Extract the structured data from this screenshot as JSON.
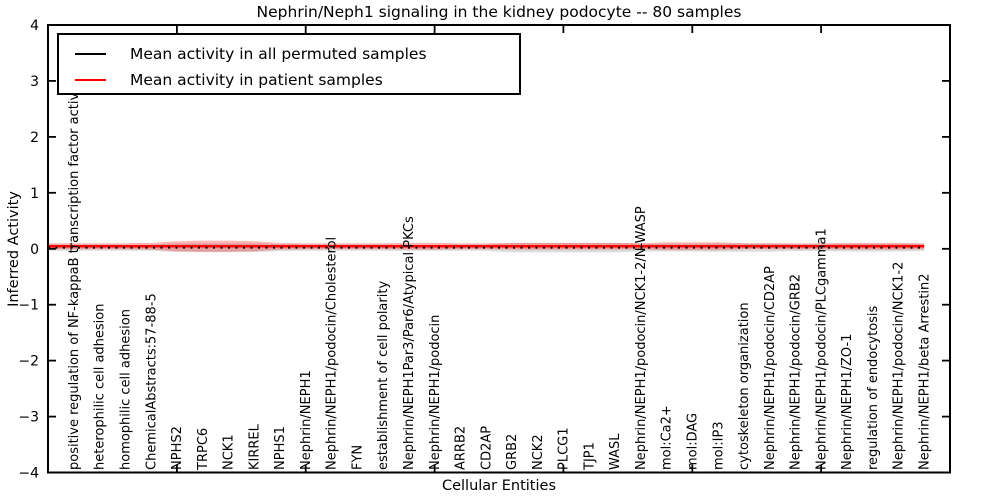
{
  "figure": {
    "title": "Nephrin/Neph1 signaling in the kidney podocyte -- 80 samples",
    "xlabel": "Cellular Entities",
    "ylabel": "Inferred Activity"
  },
  "legend": {
    "items": [
      {
        "label": "Mean activity in all permuted samples",
        "color": "#000000"
      },
      {
        "label": "Mean activity in patient samples",
        "color": "#ff0000"
      }
    ],
    "position": "upper left"
  },
  "chart_data": {
    "type": "line",
    "title": "Nephrin/Neph1 signaling in the kidney podocyte -- 80 samples",
    "xlabel": "Cellular Entities",
    "ylabel": "Inferred Activity",
    "ylim": [
      -4,
      4
    ],
    "xlim": [
      0,
      35
    ],
    "yticks": [
      {
        "v": 4,
        "label": "4"
      },
      {
        "v": 3,
        "label": "3"
      },
      {
        "v": 2,
        "label": "2"
      },
      {
        "v": 1,
        "label": "1"
      },
      {
        "v": 0,
        "label": "0"
      },
      {
        "v": -1,
        "label": "−1"
      },
      {
        "v": -2,
        "label": "−2"
      },
      {
        "v": -3,
        "label": "−3"
      },
      {
        "v": -4,
        "label": "−4"
      }
    ],
    "xticks": [
      5,
      10,
      15,
      20,
      25,
      30
    ],
    "grid": false,
    "legend_position": "upper left",
    "categories": [
      "positive regulation of NF-kappaB transcription factor activity",
      "heterophilic cell adhesion",
      "homophilic cell adhesion",
      "ChemicalAbstracts:57-88-5",
      "NPHS2",
      "TRPC6",
      "NCK1",
      "KIRREL",
      "NPHS1",
      "Nephrin/NEPH1",
      "Nephrin/NEPH1/podocin/Cholesterol",
      "FYN",
      "establishment of cell polarity",
      "Nephrin/NEPH1Par3/Par6/Atypical PKCs",
      "Nephrin/NEPH1/podocin",
      "ARRB2",
      "CD2AP",
      "GRB2",
      "NCK2",
      "PLCG1",
      "TJP1",
      "WASL",
      "Nephrin/NEPH1/podocin/NCK1-2/N-WASP",
      "mol:Ca2+",
      "mol:DAG",
      "mol:IP3",
      "cytoskeleton organization",
      "Nephrin/NEPH1/podocin/CD2AP",
      "Nephrin/NEPH1/podocin/GRB2",
      "Nephrin/NEPH1/podocin/PLCgamma1",
      "Nephrin/NEPH1/ZO-1",
      "regulation of endocytosis",
      "Nephrin/NEPH1/podocin/NCK1-2",
      "Nephrin/NEPH1/beta Arrestin2"
    ],
    "series": [
      {
        "name": "Mean activity in all permuted samples",
        "color": "#000000",
        "style": "dotted",
        "values": [
          0.02,
          0.02,
          0.02,
          0.02,
          0.02,
          0.02,
          0.02,
          0.02,
          0.02,
          0.02,
          0.02,
          0.02,
          0.02,
          0.02,
          0.02,
          0.02,
          0.02,
          0.02,
          0.02,
          0.02,
          0.02,
          0.02,
          0.02,
          0.02,
          0.02,
          0.02,
          0.02,
          0.02,
          0.02,
          0.02,
          0.02,
          0.02,
          0.02,
          0.02
        ],
        "band": [
          0.055,
          0.055,
          0.055,
          0.055,
          0.08,
          0.08,
          0.08,
          0.08,
          0.06,
          0.055,
          0.055,
          0.055,
          0.055,
          0.055,
          0.055,
          0.055,
          0.055,
          0.085,
          0.085,
          0.085,
          0.085,
          0.085,
          0.07,
          0.07,
          0.07,
          0.075,
          0.075,
          0.075,
          0.06,
          0.06,
          0.07,
          0.07,
          0.07,
          0.06
        ],
        "band_color": "rgba(110,110,110,0.25)"
      },
      {
        "name": "Mean activity in patient samples",
        "color": "#ff0000",
        "style": "solid",
        "values": [
          0.045,
          0.045,
          0.045,
          0.045,
          0.045,
          0.045,
          0.045,
          0.045,
          0.045,
          0.045,
          0.045,
          0.045,
          0.045,
          0.045,
          0.045,
          0.045,
          0.045,
          0.045,
          0.045,
          0.045,
          0.045,
          0.045,
          0.045,
          0.045,
          0.045,
          0.045,
          0.045,
          0.045,
          0.045,
          0.045,
          0.045,
          0.045,
          0.045,
          0.045
        ],
        "band": [
          0.055,
          0.055,
          0.055,
          0.06,
          0.09,
          0.1,
          0.1,
          0.09,
          0.06,
          0.055,
          0.055,
          0.055,
          0.055,
          0.06,
          0.06,
          0.055,
          0.055,
          0.06,
          0.06,
          0.06,
          0.06,
          0.06,
          0.055,
          0.07,
          0.07,
          0.07,
          0.055,
          0.055,
          0.055,
          0.055,
          0.06,
          0.06,
          0.06,
          0.055
        ],
        "band_color": "rgba(255,0,0,0.28)"
      }
    ]
  }
}
